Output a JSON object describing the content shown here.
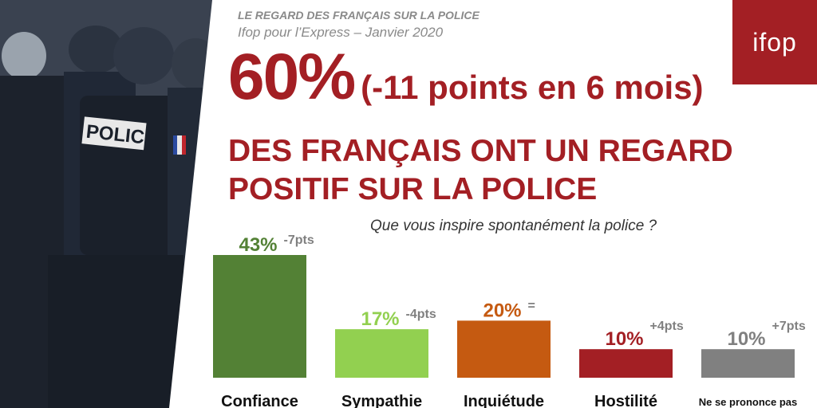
{
  "header": {
    "kicker": "LE REGARD DES FRANÇAIS SUR LA POLICE",
    "source": "Ifop pour l’Express – Janvier 2020",
    "logo_text": "ifop"
  },
  "headline": {
    "percent": "60%",
    "delta": "(-11 points en 6 mois)",
    "line1": "DES FRANÇAIS ONT UN REGARD",
    "line2": "POSITIF SUR LA POLICE"
  },
  "chart_data": {
    "type": "bar",
    "title": "Que vous inspire spontanément la police ?",
    "categories": [
      "Confiance",
      "Sympathie",
      "Inquiétude",
      "Hostilité",
      "Ne se prononce pas"
    ],
    "values": [
      43,
      17,
      20,
      10,
      10
    ],
    "value_labels": [
      "43%",
      "17%",
      "20%",
      "10%",
      "10%"
    ],
    "change_labels": [
      "-7pts",
      "-4pts",
      "=",
      "+4pts",
      "+7pts"
    ],
    "colors": [
      "#538135",
      "#92d050",
      "#c55a11",
      "#a31f24",
      "#808080"
    ],
    "label_colors": [
      "#538135",
      "#92d050",
      "#c55a11",
      "#a31f24",
      "#808080"
    ],
    "ylim": [
      0,
      43
    ]
  },
  "photo": {
    "badge_text": "POLICE"
  }
}
